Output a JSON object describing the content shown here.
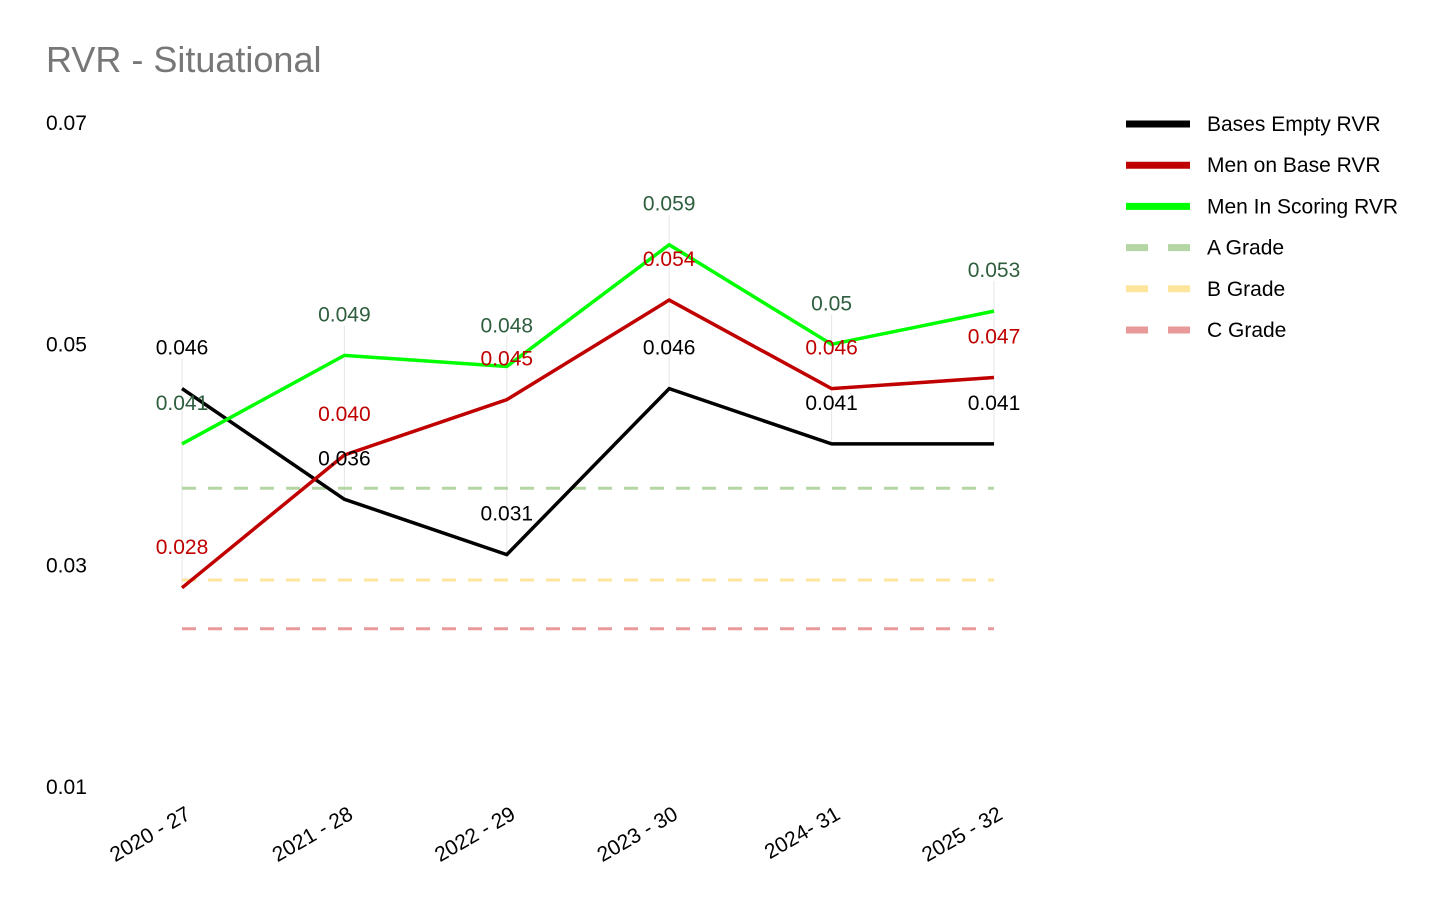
{
  "chart_data": {
    "type": "line",
    "title": "RVR - Situational",
    "xlabel": "",
    "ylabel": "",
    "categories": [
      "2020 - 27",
      "2021 - 28",
      "2022 - 29",
      "2023 - 30",
      "2024- 31",
      "2025 - 32"
    ],
    "ylim": [
      0.01,
      0.07
    ],
    "yticks": [
      "0.07",
      "0.05",
      "0.03",
      "0.01"
    ],
    "grid": false,
    "legend_position": "right",
    "series": [
      {
        "name": "Bases Empty RVR",
        "color": "#000000",
        "values": [
          0.046,
          0.036,
          0.031,
          0.046,
          0.041,
          0.041
        ],
        "labels": [
          "0.046",
          "0.036",
          "0.031",
          "0.046",
          "0.041",
          "0.041"
        ],
        "label_color": "#000000"
      },
      {
        "name": "Men on Base RVR",
        "color": "#c00000",
        "values": [
          0.028,
          0.04,
          0.045,
          0.054,
          0.046,
          0.047
        ],
        "labels": [
          "0.028",
          "0.040",
          "0.045",
          "0.054",
          "0.046",
          "0.047"
        ],
        "label_color": "#c00000"
      },
      {
        "name": "Men In Scoring RVR",
        "color": "#00ff00",
        "values": [
          0.041,
          0.049,
          0.048,
          0.059,
          0.05,
          0.053
        ],
        "labels": [
          "0.041",
          "0.049",
          "0.048",
          "0.059",
          "0.05",
          "0.053"
        ],
        "label_color": "#2e5e3e"
      }
    ],
    "reference_lines": [
      {
        "name": "A Grade",
        "value": 0.037,
        "color": "#b3d6a4"
      },
      {
        "name": "B Grade",
        "value": 0.0287,
        "color": "#fde59c"
      },
      {
        "name": "C Grade",
        "value": 0.0243,
        "color": "#e89a9a"
      }
    ]
  }
}
